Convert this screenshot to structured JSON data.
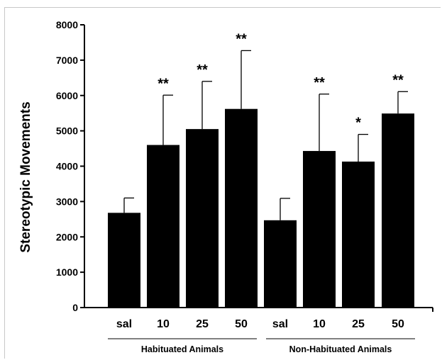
{
  "chart_data": {
    "type": "bar",
    "ylabel": "Stereotypic Movements",
    "ylim": [
      0,
      8000
    ],
    "yticks": [
      0,
      1000,
      2000,
      3000,
      4000,
      5000,
      6000,
      7000,
      8000
    ],
    "categories": [
      "sal",
      "10",
      "25",
      "50",
      "sal",
      "10",
      "25",
      "50"
    ],
    "values": [
      2680,
      4600,
      5050,
      5620,
      2470,
      4430,
      4130,
      5490
    ],
    "error_upper": [
      3100,
      6010,
      6400,
      7270,
      3090,
      6040,
      4900,
      6110
    ],
    "significance": [
      "",
      "**",
      "**",
      "**",
      "",
      "**",
      "*",
      "**"
    ],
    "groups": [
      {
        "label": "Habituated Animals",
        "categories": [
          0,
          1,
          2,
          3
        ]
      },
      {
        "label": "Non-Habituated Animals",
        "categories": [
          4,
          5,
          6,
          7
        ]
      }
    ],
    "bar_color": "#000000",
    "grid": false
  }
}
